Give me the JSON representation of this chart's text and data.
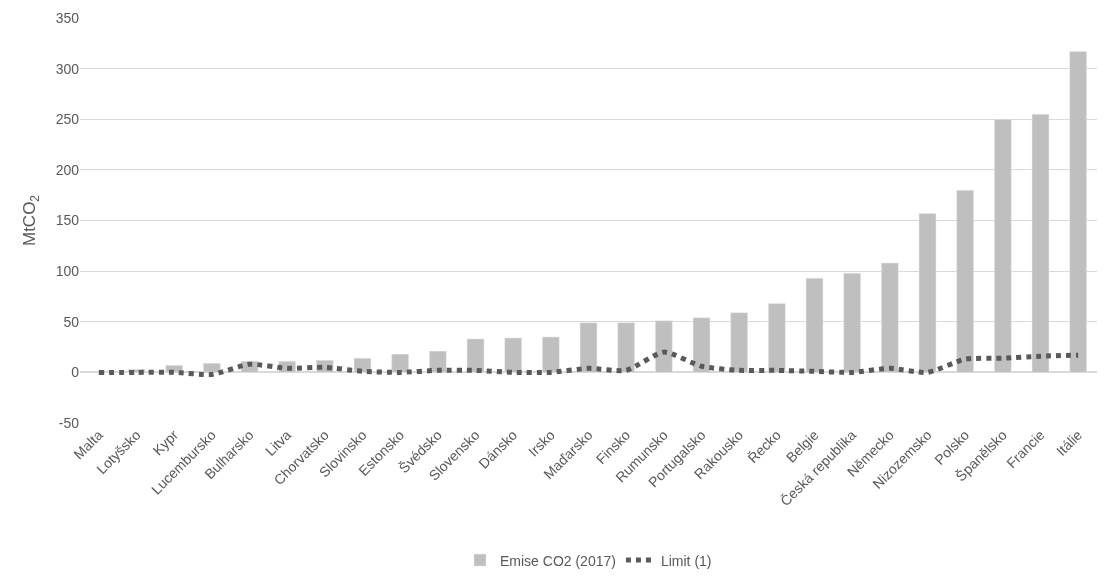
{
  "chart_data": {
    "type": "bar",
    "categories": [
      "Malta",
      "Lotyšsko",
      "Kypr",
      "Lucembursko",
      "Bulharsko",
      "Litva",
      "Chorvatsko",
      "Slovinsko",
      "Estonsko",
      "Švédsko",
      "Slovensko",
      "Dánsko",
      "Irsko",
      "Maďarsko",
      "Finsko",
      "Rumunsko",
      "Portugalsko",
      "Rakousko",
      "Řecko",
      "Belgie",
      "Česká republika",
      "Německo",
      "Nizozemsko",
      "Polsko",
      "Španělsko",
      "Francie",
      "Itálie"
    ],
    "series": [
      {
        "name": "Emise CO2 (2017)",
        "color": "#bfbfbf",
        "values": [
          1,
          3,
          7,
          9,
          11,
          11,
          12,
          14,
          18,
          21,
          33,
          34,
          35,
          49,
          49,
          51,
          54,
          59,
          68,
          93,
          98,
          108,
          157,
          180,
          250,
          255,
          317
        ]
      },
      {
        "name": "Limit (1)",
        "type": "line",
        "color": "#595959",
        "line_style": "dotted",
        "values": [
          0,
          0,
          0,
          -2,
          8,
          4,
          5,
          1,
          0,
          2,
          2,
          0,
          0,
          4,
          2,
          20,
          6,
          2,
          2,
          1,
          0,
          4,
          0,
          13,
          14,
          16,
          17
        ]
      }
    ],
    "ylabel": "MtCO$_{2}$",
    "ylim": [
      -50,
      350
    ],
    "yticks": [
      -50,
      0,
      50,
      100,
      150,
      200,
      250,
      300,
      350
    ],
    "grid": "y",
    "legend": "bottom"
  }
}
